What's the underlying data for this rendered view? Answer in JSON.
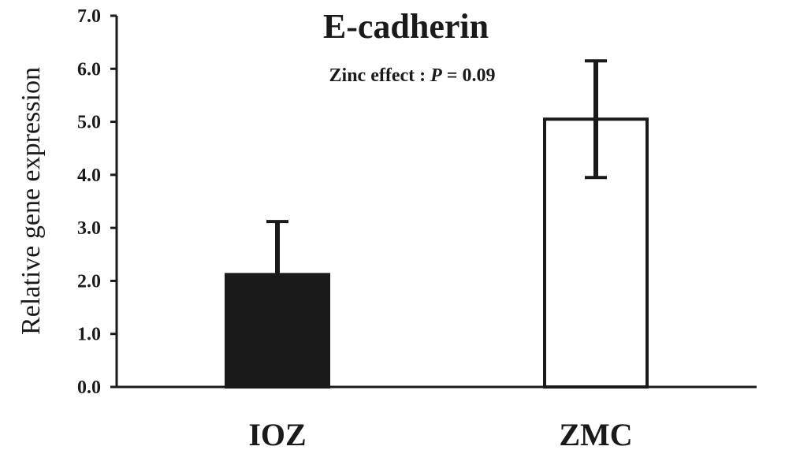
{
  "chart_data": {
    "type": "bar",
    "title": "E-cadherin",
    "subtitle_prefix": "Zinc effect : ",
    "subtitle_stat": "P",
    "subtitle_suffix": " = 0.09",
    "xlabel": "",
    "ylabel": "Relative gene expression",
    "ylim": [
      0,
      7
    ],
    "yticks": [
      "0.0",
      "1.0",
      "2.0",
      "3.0",
      "4.0",
      "5.0",
      "6.0",
      "7.0"
    ],
    "categories": [
      "IOZ",
      "ZMC"
    ],
    "values": [
      2.12,
      5.05
    ],
    "errors": [
      1.0,
      1.1
    ],
    "error_style": [
      "upper",
      "both"
    ],
    "bar_fills": [
      "#1a1a1a",
      "#ffffff"
    ],
    "grid": false,
    "legend": "none"
  }
}
